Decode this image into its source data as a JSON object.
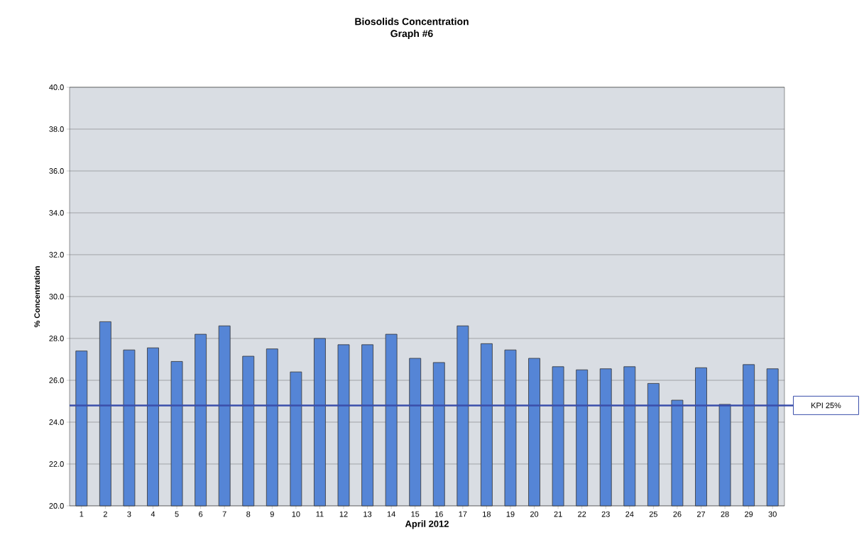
{
  "chart_data": {
    "type": "bar",
    "title": "Biosolids Concentration",
    "subtitle": "Graph #6",
    "xlabel": "April 2012",
    "ylabel": "% Concentration",
    "categories": [
      "1",
      "2",
      "3",
      "4",
      "5",
      "6",
      "7",
      "8",
      "9",
      "10",
      "11",
      "12",
      "13",
      "14",
      "15",
      "16",
      "17",
      "18",
      "19",
      "20",
      "21",
      "22",
      "23",
      "24",
      "25",
      "26",
      "27",
      "28",
      "29",
      "30"
    ],
    "values": [
      27.4,
      28.8,
      27.45,
      27.55,
      26.9,
      28.2,
      28.6,
      27.15,
      27.5,
      26.4,
      28.0,
      27.7,
      27.7,
      28.2,
      27.05,
      26.85,
      28.6,
      27.75,
      27.45,
      27.05,
      26.65,
      26.5,
      26.55,
      26.65,
      25.85,
      25.05,
      26.6,
      24.85,
      26.75,
      26.55
    ],
    "color": "#5585d6",
    "ylim": [
      20,
      40
    ],
    "yticks": [
      {
        "value": 20,
        "label": "20.0"
      },
      {
        "value": 22,
        "label": "22.0"
      },
      {
        "value": 24,
        "label": "24.0"
      },
      {
        "value": 26,
        "label": "26.0"
      },
      {
        "value": 28,
        "label": "28.0"
      },
      {
        "value": 30,
        "label": "30.0"
      },
      {
        "value": 32,
        "label": "32.0"
      },
      {
        "value": 34,
        "label": "34.0"
      },
      {
        "value": 36,
        "label": "36.0"
      },
      {
        "value": 38,
        "label": "38.0"
      },
      {
        "value": 40,
        "label": "40.0"
      }
    ],
    "grid": "y",
    "ref_lines": [
      {
        "axis": "y",
        "value": 24.8,
        "label": "KPI 25%",
        "color": "#3a4eaa"
      }
    ]
  }
}
